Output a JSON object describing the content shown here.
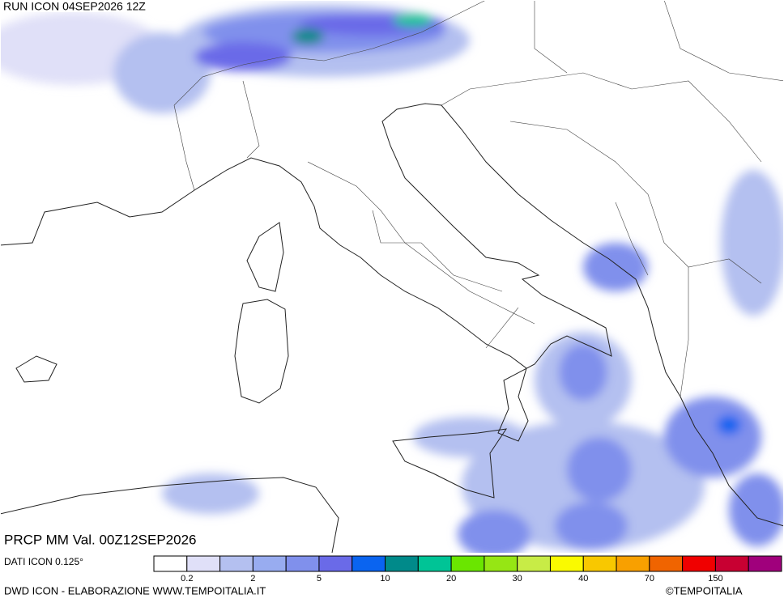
{
  "header": {
    "run": "RUN ICON 04SEP2026 12Z"
  },
  "map": {
    "variable": "PRCP MM Val. 00Z12SEP2026"
  },
  "footer": {
    "data_source": "DATI ICON 0.125°",
    "credit": "DWD ICON - ELABORAZIONE WWW.TEMPOITALIA.IT",
    "copyright": "©TEMPOITALIA"
  },
  "legend": {
    "colors": [
      "#ffffff",
      "#e0e0f8",
      "#b4c0f0",
      "#98acf0",
      "#8090ec",
      "#6a6ae8",
      "#0a64f0",
      "#008a8a",
      "#00c496",
      "#6ae600",
      "#96e614",
      "#c8ec46",
      "#fafa00",
      "#f8c800",
      "#f8a000",
      "#f06400",
      "#f00000",
      "#c80032",
      "#a0007c"
    ],
    "labels": [
      "0.2",
      "2",
      "5",
      "10",
      "20",
      "30",
      "40",
      "70",
      "150"
    ]
  }
}
